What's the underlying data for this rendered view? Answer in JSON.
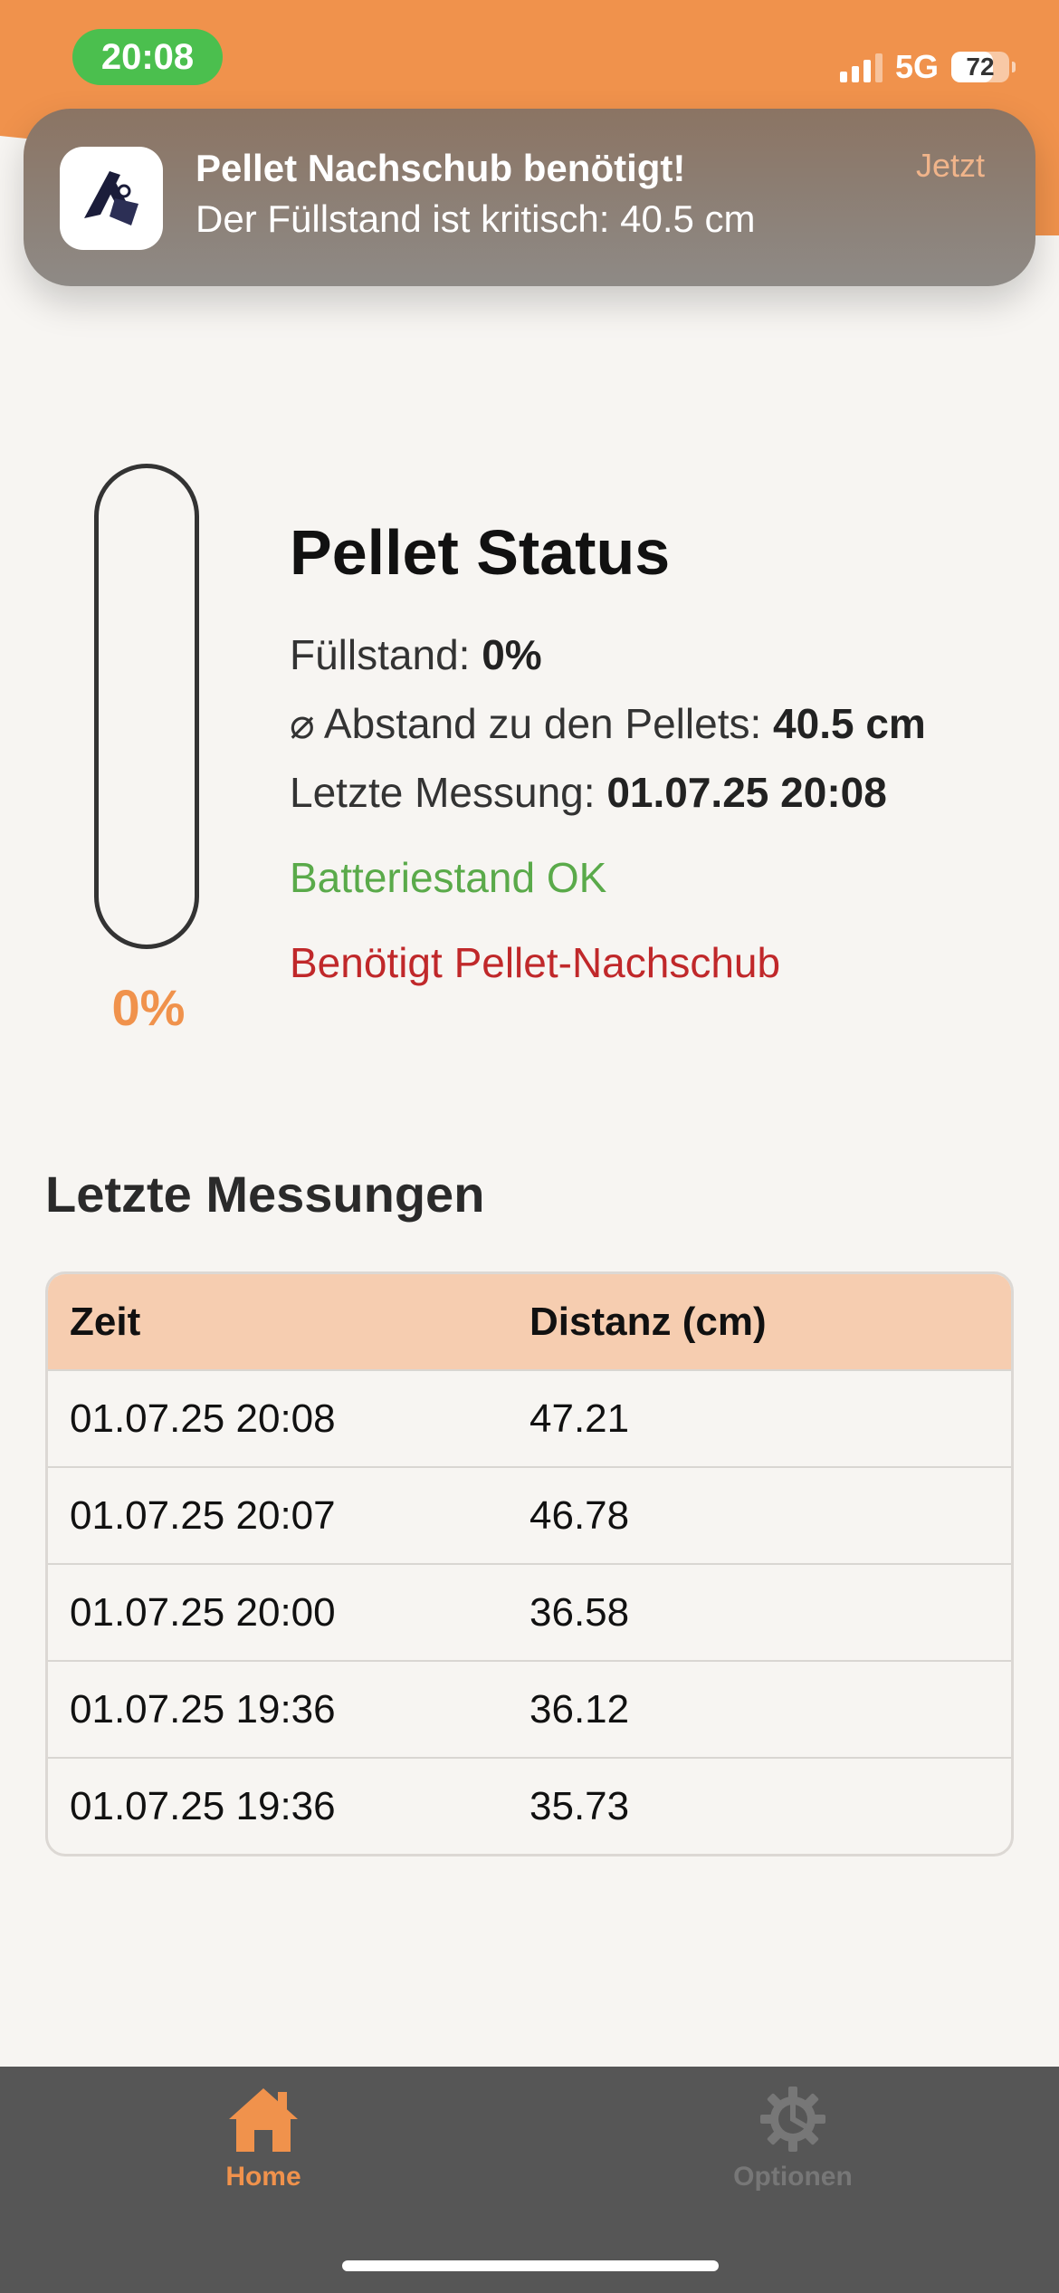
{
  "status_bar": {
    "time": "20:08",
    "network": "5G",
    "battery": "72",
    "battery_level": 0.72,
    "signal_bars_active": 3
  },
  "notification": {
    "title": "Pellet Nachschub benötigt!",
    "body": "Der Füllstand ist kritisch: 40.5 cm",
    "time": "Jetzt",
    "icon": "app-logo-icon"
  },
  "gauge": {
    "percent_label": "0%",
    "fill_fraction": 0.0
  },
  "status": {
    "title": "Pellet Status",
    "fill_label": "Füllstand: ",
    "fill_value": "0%",
    "distance_label": "⌀ Abstand zu den Pellets: ",
    "distance_value": "40.5 cm",
    "last_label": "Letzte Messung: ",
    "last_value": "01.07.25 20:08",
    "battery_status": "Batteriestand OK",
    "refill_status": "Benötigt Pellet-Nachschub"
  },
  "measurements": {
    "title": "Letzte Messungen",
    "headers": [
      "Zeit",
      "Distanz (cm)"
    ],
    "rows": [
      [
        "01.07.25 20:08",
        "47.21"
      ],
      [
        "01.07.25 20:07",
        "46.78"
      ],
      [
        "01.07.25 20:00",
        "36.58"
      ],
      [
        "01.07.25 19:36",
        "36.12"
      ],
      [
        "01.07.25 19:36",
        "35.73"
      ]
    ]
  },
  "tabbar": {
    "home": {
      "label": "Home",
      "icon": "home-icon"
    },
    "options": {
      "label": "Optionen",
      "icon": "gear-icon"
    }
  },
  "colors": {
    "accent": "#f0924c",
    "ok": "#5aaa4a",
    "warn": "#c0282a",
    "table_header": "#f6cdb0",
    "tabbar": "#565656"
  }
}
